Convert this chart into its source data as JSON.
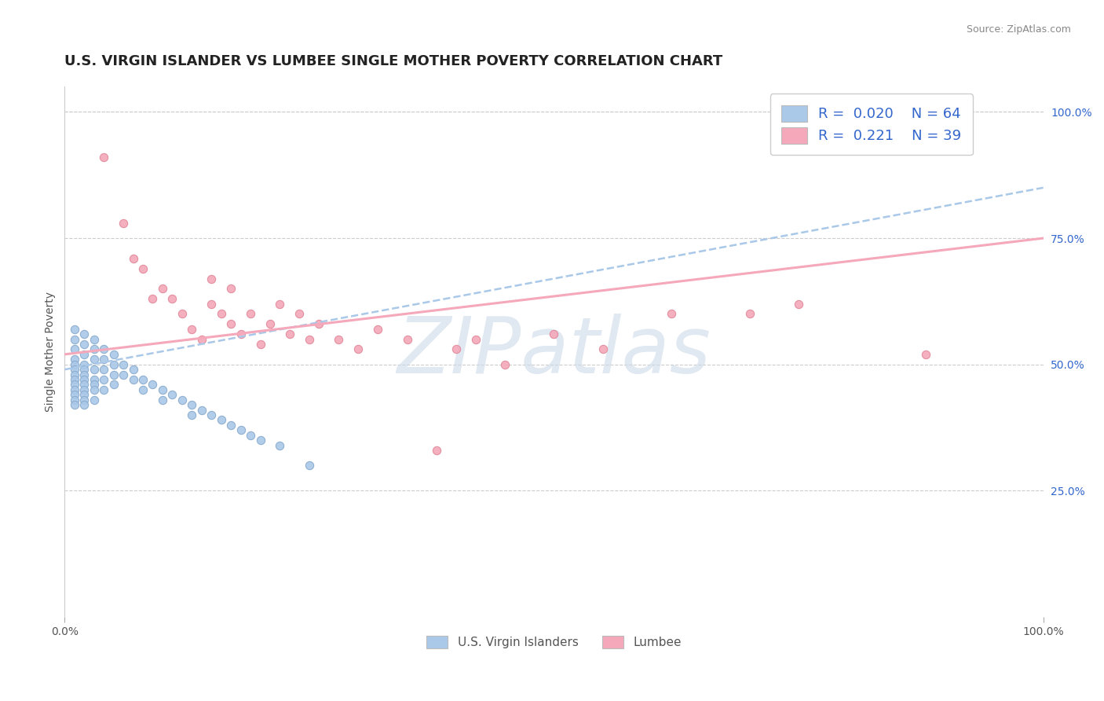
{
  "title": "U.S. VIRGIN ISLANDER VS LUMBEE SINGLE MOTHER POVERTY CORRELATION CHART",
  "source": "Source: ZipAtlas.com",
  "ylabel": "Single Mother Poverty",
  "right_ytick_labels": [
    "25.0%",
    "50.0%",
    "75.0%",
    "100.0%"
  ],
  "right_ytick_values": [
    0.25,
    0.5,
    0.75,
    1.0
  ],
  "legend_top": [
    {
      "label": "R =  0.020    N = 64",
      "color": "#aac8e8"
    },
    {
      "label": "R =  0.221    N = 39",
      "color": "#f4a8ba"
    }
  ],
  "legend_bottom": [
    {
      "label": "U.S. Virgin Islanders",
      "color": "#aac8e8"
    },
    {
      "label": "Lumbee",
      "color": "#f4a8ba"
    }
  ],
  "blue_scatter_x": [
    0.01,
    0.01,
    0.01,
    0.01,
    0.01,
    0.01,
    0.01,
    0.01,
    0.01,
    0.01,
    0.01,
    0.01,
    0.01,
    0.02,
    0.02,
    0.02,
    0.02,
    0.02,
    0.02,
    0.02,
    0.02,
    0.02,
    0.02,
    0.02,
    0.02,
    0.03,
    0.03,
    0.03,
    0.03,
    0.03,
    0.03,
    0.03,
    0.03,
    0.04,
    0.04,
    0.04,
    0.04,
    0.04,
    0.05,
    0.05,
    0.05,
    0.05,
    0.06,
    0.06,
    0.07,
    0.07,
    0.08,
    0.08,
    0.09,
    0.1,
    0.1,
    0.11,
    0.12,
    0.13,
    0.13,
    0.14,
    0.15,
    0.16,
    0.17,
    0.18,
    0.19,
    0.2,
    0.22,
    0.25
  ],
  "blue_scatter_y": [
    0.57,
    0.55,
    0.53,
    0.51,
    0.5,
    0.49,
    0.48,
    0.47,
    0.46,
    0.45,
    0.44,
    0.43,
    0.42,
    0.56,
    0.54,
    0.52,
    0.5,
    0.49,
    0.48,
    0.47,
    0.46,
    0.45,
    0.44,
    0.43,
    0.42,
    0.55,
    0.53,
    0.51,
    0.49,
    0.47,
    0.46,
    0.45,
    0.43,
    0.53,
    0.51,
    0.49,
    0.47,
    0.45,
    0.52,
    0.5,
    0.48,
    0.46,
    0.5,
    0.48,
    0.49,
    0.47,
    0.47,
    0.45,
    0.46,
    0.45,
    0.43,
    0.44,
    0.43,
    0.42,
    0.4,
    0.41,
    0.4,
    0.39,
    0.38,
    0.37,
    0.36,
    0.35,
    0.34,
    0.3
  ],
  "pink_scatter_x": [
    0.04,
    0.06,
    0.07,
    0.08,
    0.09,
    0.1,
    0.11,
    0.12,
    0.13,
    0.14,
    0.15,
    0.15,
    0.16,
    0.17,
    0.17,
    0.18,
    0.19,
    0.2,
    0.21,
    0.22,
    0.23,
    0.24,
    0.25,
    0.26,
    0.28,
    0.3,
    0.32,
    0.35,
    0.38,
    0.4,
    0.42,
    0.45,
    0.5,
    0.55,
    0.62,
    0.7,
    0.75,
    0.88,
    0.92
  ],
  "pink_scatter_y": [
    0.91,
    0.78,
    0.71,
    0.69,
    0.63,
    0.65,
    0.63,
    0.6,
    0.57,
    0.55,
    0.67,
    0.62,
    0.6,
    0.58,
    0.65,
    0.56,
    0.6,
    0.54,
    0.58,
    0.62,
    0.56,
    0.6,
    0.55,
    0.58,
    0.55,
    0.53,
    0.57,
    0.55,
    0.33,
    0.53,
    0.55,
    0.5,
    0.56,
    0.53,
    0.6,
    0.6,
    0.62,
    0.52,
    0.97
  ],
  "blue_line_x": [
    0.0,
    1.0
  ],
  "blue_line_y": [
    0.49,
    0.85
  ],
  "pink_line_x": [
    0.0,
    1.0
  ],
  "pink_line_y": [
    0.52,
    0.75
  ],
  "watermark": "ZIPatlas",
  "watermark_color": "#ccd9e8",
  "background_color": "#ffffff",
  "title_fontsize": 13,
  "scatter_size": 55,
  "blue_color": "#aac8e8",
  "blue_edge_color": "#88aacc",
  "pink_color": "#f4a8ba",
  "pink_edge_color": "#e08898",
  "legend_text_color": "#3366cc",
  "xlim": [
    0.0,
    1.0
  ],
  "ylim": [
    0.0,
    1.05
  ]
}
